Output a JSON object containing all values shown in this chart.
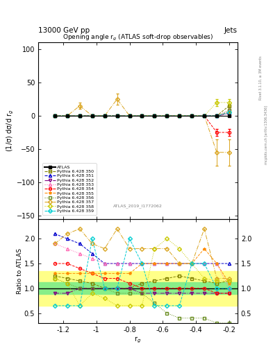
{
  "title": "Opening angle r$_g$ (ATLAS soft-drop observables)",
  "header_left": "13000 GeV pp",
  "header_right": "Jets",
  "ylabel_main": "(1/σ) dσ/d r$_g$",
  "ylabel_ratio": "Ratio to ATLAS",
  "xlabel": "r$_g$",
  "watermark": "ATLAS_2019_I1772062",
  "rivet_text": "Rivet 3.1.10, ≥ 3M events",
  "mcplots_text": "mcplots.cern.ch [arXiv:1306.3436]",
  "x_values": [
    -1.25,
    -1.175,
    -1.1,
    -1.025,
    -0.95,
    -0.875,
    -0.8,
    -0.725,
    -0.65,
    -0.575,
    -0.5,
    -0.425,
    -0.35,
    -0.275,
    -0.2
  ],
  "xlim": [
    -1.35,
    -0.15
  ],
  "ylim_main": [
    -155,
    110
  ],
  "ylim_ratio": [
    0.3,
    2.4
  ],
  "yticks_main": [
    -150,
    -100,
    -50,
    0,
    50,
    100
  ],
  "yticks_ratio": [
    0.5,
    1.0,
    1.5,
    2.0
  ],
  "xticks": [
    -1.2,
    -1.0,
    -0.8,
    -0.6,
    -0.4,
    -0.2
  ],
  "xtick_labels": [
    "-1.2",
    "-1",
    "-0.8",
    "-0.6",
    "-0.4",
    "-0.2"
  ],
  "atlas_values": [
    0,
    0,
    0,
    0,
    0,
    0,
    0,
    0,
    0,
    0,
    0,
    0,
    0,
    0,
    0
  ],
  "atlas_errors": [
    1,
    1,
    1,
    1,
    1,
    1,
    1,
    1,
    1,
    1,
    1,
    1,
    1,
    1,
    1
  ],
  "green_band": [
    0.88,
    1.12
  ],
  "yellow_band": [
    0.65,
    1.35
  ],
  "series": [
    {
      "label": "Pythia 6.428 350",
      "color": "#808000",
      "marker": "s",
      "linestyle": "--",
      "values": [
        0,
        0,
        0,
        0,
        0,
        0,
        0,
        0,
        0,
        0,
        0,
        0,
        0,
        0,
        15
      ],
      "errors": [
        0,
        0,
        0,
        0,
        0,
        0,
        0,
        0,
        0,
        0,
        0,
        0,
        0,
        0,
        3
      ],
      "ratio": [
        1.25,
        1.2,
        1.15,
        1.1,
        1.0,
        1.0,
        1.0,
        1.1,
        1.15,
        1.2,
        1.25,
        1.2,
        1.15,
        1.1,
        1.15
      ]
    },
    {
      "label": "Pythia 6.428 351",
      "color": "#0000cc",
      "marker": "^",
      "linestyle": "--",
      "values": [
        0,
        0,
        0,
        0,
        0,
        0,
        0,
        0,
        0,
        0,
        0,
        0,
        0,
        0,
        5
      ],
      "errors": [
        0,
        0,
        0,
        0,
        0,
        0,
        0,
        0,
        0,
        0,
        0,
        0,
        0,
        0,
        2
      ],
      "ratio": [
        2.1,
        2.0,
        1.9,
        1.7,
        1.5,
        1.5,
        1.5,
        1.5,
        1.5,
        1.5,
        1.5,
        1.5,
        1.5,
        1.5,
        1.5
      ]
    },
    {
      "label": "Pythia 6.428 352",
      "color": "#800080",
      "marker": "v",
      "linestyle": "-.",
      "values": [
        0,
        0,
        0,
        0,
        0,
        0,
        0,
        0,
        0,
        0,
        0,
        0,
        0,
        0,
        3
      ],
      "errors": [
        0,
        0,
        0,
        0,
        0,
        0,
        0,
        0,
        0,
        0,
        0,
        0,
        0,
        0,
        1.5
      ],
      "ratio": [
        0.9,
        0.9,
        1.0,
        1.0,
        1.0,
        1.0,
        1.0,
        0.9,
        0.9,
        0.9,
        0.9,
        0.9,
        0.9,
        0.9,
        0.9
      ]
    },
    {
      "label": "Pythia 6.428 353",
      "color": "#ff69b4",
      "marker": "^",
      "linestyle": ":",
      "values": [
        0,
        0,
        0,
        0,
        0,
        0,
        0,
        0,
        0,
        0,
        0,
        0,
        0,
        0,
        8
      ],
      "errors": [
        0,
        0,
        0,
        0,
        0,
        0,
        0,
        0,
        0,
        0,
        0,
        0,
        0,
        0,
        2.5
      ],
      "ratio": [
        1.9,
        1.8,
        1.7,
        1.6,
        1.5,
        1.5,
        1.5,
        1.5,
        1.5,
        1.5,
        1.5,
        1.5,
        1.5,
        1.5,
        1.0
      ]
    },
    {
      "label": "Pythia 6.428 354",
      "color": "#ff0000",
      "marker": "o",
      "linestyle": "--",
      "values": [
        0,
        0,
        0,
        0,
        0,
        0,
        0,
        0,
        0,
        0,
        0,
        0,
        0,
        -25,
        -25
      ],
      "errors": [
        0,
        0,
        0,
        0,
        0,
        0,
        0,
        0,
        0,
        0,
        0,
        0,
        0,
        5,
        5
      ],
      "ratio": [
        1.5,
        1.5,
        1.4,
        1.3,
        1.2,
        1.2,
        1.1,
        1.0,
        1.0,
        1.0,
        1.0,
        1.0,
        1.0,
        0.9,
        0.9
      ]
    },
    {
      "label": "Pythia 6.428 355",
      "color": "#ff8c00",
      "marker": "*",
      "linestyle": "--",
      "values": [
        0,
        0,
        0,
        0,
        0,
        0,
        0,
        0,
        0,
        0,
        0,
        0,
        0,
        0,
        5
      ],
      "errors": [
        0,
        0,
        0,
        0,
        0,
        0,
        0,
        0,
        0,
        0,
        0,
        0,
        0,
        0,
        2
      ],
      "ratio": [
        1.3,
        1.3,
        1.3,
        1.3,
        1.3,
        1.3,
        1.3,
        1.5,
        1.5,
        1.5,
        1.5,
        1.5,
        1.8,
        1.5,
        1.1
      ]
    },
    {
      "label": "Pythia 6.428 356",
      "color": "#6b8e23",
      "marker": "s",
      "linestyle": ":",
      "values": [
        0,
        0,
        0,
        0,
        0,
        0,
        0,
        0,
        0,
        0,
        0,
        0,
        0,
        0,
        8
      ],
      "errors": [
        0,
        0,
        0,
        0,
        0,
        0,
        0,
        0,
        0,
        0,
        0,
        0,
        0,
        0,
        2
      ],
      "ratio": [
        1.2,
        1.1,
        1.0,
        1.0,
        1.0,
        0.9,
        0.9,
        0.9,
        0.7,
        0.5,
        0.4,
        0.4,
        0.4,
        0.3,
        0.3
      ]
    },
    {
      "label": "Pythia 6.428 357",
      "color": "#daa520",
      "marker": "D",
      "linestyle": "-.",
      "values": [
        0,
        0,
        15,
        0,
        0,
        25,
        0,
        0,
        0,
        0,
        0,
        0,
        0,
        -55,
        -55
      ],
      "errors": [
        0,
        0,
        5,
        0,
        0,
        8,
        0,
        0,
        0,
        0,
        0,
        0,
        0,
        20,
        20
      ],
      "ratio": [
        1.9,
        2.1,
        2.2,
        1.9,
        1.8,
        2.2,
        1.8,
        1.8,
        1.8,
        1.8,
        1.5,
        1.5,
        2.2,
        1.2,
        1.2
      ]
    },
    {
      "label": "Pythia 6.428 358",
      "color": "#c8c800",
      "marker": "D",
      "linestyle": ":",
      "values": [
        0,
        0,
        0,
        0,
        0,
        0,
        0,
        0,
        0,
        0,
        0,
        0,
        0,
        20,
        20
      ],
      "errors": [
        0,
        0,
        0,
        0,
        0,
        0,
        0,
        0,
        0,
        0,
        0,
        0,
        0,
        5,
        5
      ],
      "ratio": [
        1.2,
        1.1,
        0.65,
        0.9,
        0.8,
        0.65,
        0.65,
        0.65,
        1.8,
        2.0,
        1.8,
        1.5,
        1.2,
        1.15,
        1.15
      ]
    },
    {
      "label": "Pythia 6.428 359",
      "color": "#00ced1",
      "marker": "D",
      "linestyle": "--",
      "values": [
        0,
        0,
        0,
        0,
        0,
        0,
        0,
        0,
        0,
        0,
        0,
        0,
        0,
        0,
        5
      ],
      "errors": [
        0,
        0,
        0,
        0,
        0,
        0,
        0,
        0,
        0,
        0,
        0,
        0,
        0,
        0,
        2
      ],
      "ratio": [
        0.65,
        0.65,
        0.65,
        2.0,
        1.0,
        1.0,
        2.0,
        1.5,
        0.65,
        0.65,
        0.65,
        1.5,
        1.5,
        1.0,
        1.0
      ]
    }
  ]
}
